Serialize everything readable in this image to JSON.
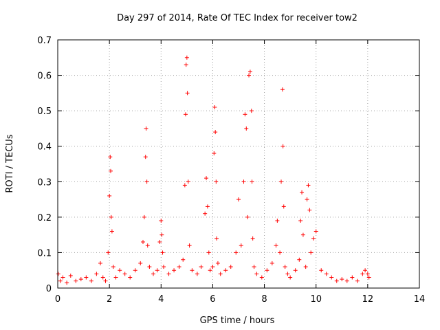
{
  "chart_data": {
    "type": "scatter",
    "title": "Day 297 of 2014, Rate Of TEC Index for receiver tow2",
    "xlabel": "GPS time / hours",
    "ylabel": "ROTI / TECUs",
    "xlim": [
      0,
      14
    ],
    "ylim": [
      0,
      0.7
    ],
    "xticks": [
      "0",
      "2",
      "4",
      "6",
      "8",
      "10",
      "12",
      "14"
    ],
    "yticks": [
      "0",
      "0.1",
      "0.2",
      "0.3",
      "0.4",
      "0.5",
      "0.6",
      "0.7"
    ],
    "grid": true,
    "marker": "+",
    "color": "#ff0000",
    "series": [
      {
        "name": "ROTI",
        "x": [
          0.02,
          0.1,
          0.2,
          0.35,
          0.5,
          0.7,
          0.9,
          1.1,
          1.3,
          1.5,
          1.65,
          1.75,
          1.85,
          1.95,
          2.0,
          2.03,
          2.05,
          2.07,
          2.1,
          2.15,
          2.25,
          2.4,
          2.6,
          2.8,
          3.0,
          3.2,
          3.3,
          3.35,
          3.4,
          3.42,
          3.45,
          3.48,
          3.55,
          3.7,
          3.85,
          3.95,
          4.0,
          4.03,
          4.06,
          4.1,
          4.3,
          4.5,
          4.7,
          4.85,
          4.92,
          4.95,
          4.97,
          5.0,
          5.02,
          5.05,
          5.1,
          5.2,
          5.4,
          5.55,
          5.7,
          5.75,
          5.8,
          5.85,
          5.9,
          6.0,
          6.05,
          6.08,
          6.1,
          6.13,
          6.15,
          6.2,
          6.3,
          6.5,
          6.7,
          6.9,
          7.0,
          7.1,
          7.2,
          7.25,
          7.3,
          7.35,
          7.4,
          7.45,
          7.5,
          7.52,
          7.55,
          7.6,
          7.7,
          7.9,
          8.1,
          8.3,
          8.45,
          8.5,
          8.6,
          8.65,
          8.7,
          8.72,
          8.75,
          8.8,
          8.9,
          9.0,
          9.2,
          9.35,
          9.4,
          9.45,
          9.5,
          9.6,
          9.65,
          9.7,
          9.75,
          9.8,
          9.9,
          10.0,
          10.2,
          10.4,
          10.6,
          10.8,
          11.0,
          11.2,
          11.4,
          11.6,
          11.8,
          11.9,
          12.0,
          12.05
        ],
        "y": [
          0.04,
          0.02,
          0.03,
          0.015,
          0.035,
          0.02,
          0.025,
          0.03,
          0.02,
          0.04,
          0.07,
          0.03,
          0.02,
          0.1,
          0.26,
          0.37,
          0.33,
          0.2,
          0.16,
          0.06,
          0.03,
          0.05,
          0.04,
          0.03,
          0.05,
          0.07,
          0.13,
          0.2,
          0.37,
          0.45,
          0.3,
          0.12,
          0.06,
          0.04,
          0.05,
          0.13,
          0.19,
          0.15,
          0.1,
          0.06,
          0.04,
          0.05,
          0.06,
          0.08,
          0.29,
          0.49,
          0.63,
          0.65,
          0.55,
          0.3,
          0.12,
          0.05,
          0.04,
          0.06,
          0.21,
          0.31,
          0.23,
          0.1,
          0.05,
          0.06,
          0.38,
          0.51,
          0.44,
          0.3,
          0.14,
          0.07,
          0.04,
          0.05,
          0.06,
          0.1,
          0.25,
          0.12,
          0.3,
          0.49,
          0.45,
          0.2,
          0.6,
          0.61,
          0.5,
          0.3,
          0.14,
          0.06,
          0.04,
          0.03,
          0.05,
          0.07,
          0.12,
          0.19,
          0.1,
          0.3,
          0.56,
          0.4,
          0.23,
          0.06,
          0.04,
          0.03,
          0.05,
          0.08,
          0.19,
          0.27,
          0.15,
          0.06,
          0.25,
          0.29,
          0.22,
          0.1,
          0.14,
          0.16,
          0.05,
          0.04,
          0.03,
          0.02,
          0.025,
          0.02,
          0.03,
          0.02,
          0.04,
          0.05,
          0.04,
          0.03
        ]
      }
    ]
  }
}
